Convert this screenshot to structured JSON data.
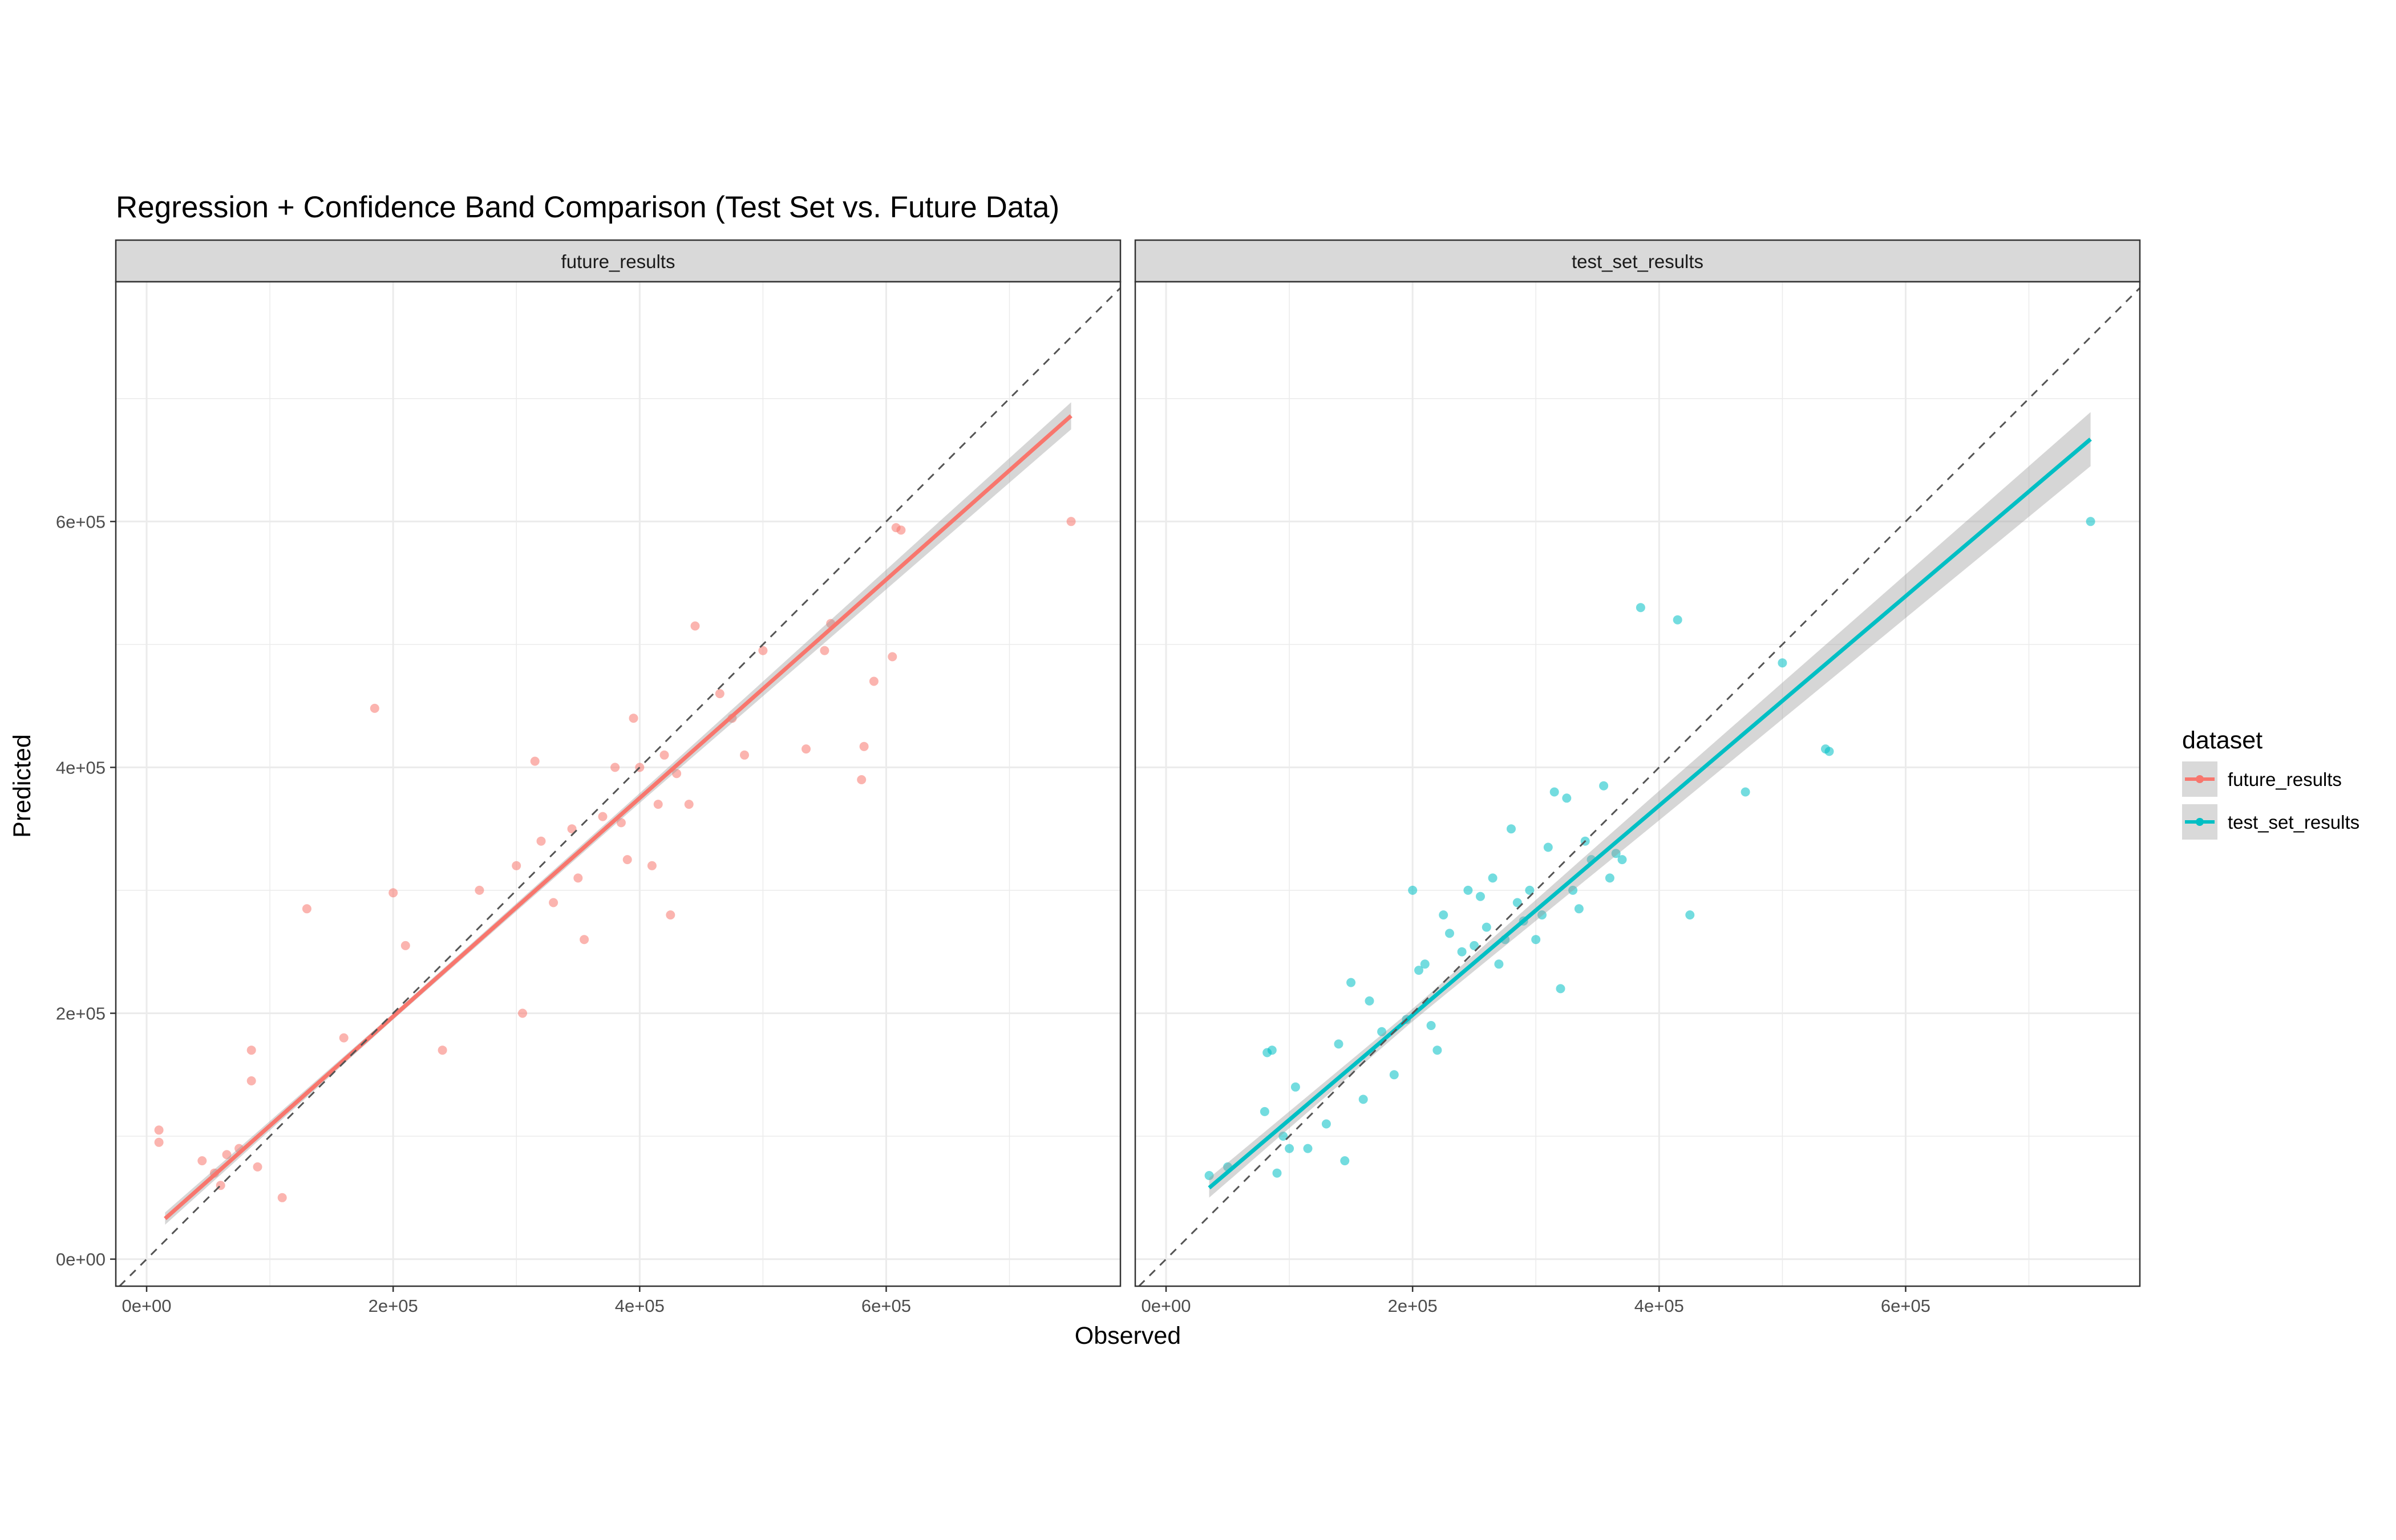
{
  "chart_data": {
    "type": "scatter",
    "title": "Regression + Confidence Band Comparison (Test Set vs. Future Data)",
    "xlabel": "Observed",
    "ylabel": "Predicted",
    "xlim": [
      -25000,
      790000
    ],
    "ylim": [
      -22000,
      795000
    ],
    "x_ticks": [
      0,
      200000,
      400000,
      600000
    ],
    "x_tick_labels": [
      "0e+00",
      "2e+05",
      "4e+05",
      "6e+05"
    ],
    "y_ticks": [
      0,
      200000,
      400000,
      600000
    ],
    "y_tick_labels": [
      "0e+00",
      "2e+05",
      "4e+05",
      "6e+05"
    ],
    "grid": true,
    "reference_line": "y = x (dashed)",
    "legend": {
      "title": "dataset",
      "position": "right",
      "entries": [
        "future_results",
        "test_set_results"
      ]
    },
    "colors": {
      "future_results": "#F8766D",
      "test_set_results": "#00BFC4",
      "band": "#999999",
      "strip": "#D9D9D9"
    },
    "series": [
      {
        "name": "future_results",
        "panel": "future_results",
        "fit": {
          "x": [
            15000,
            750000
          ],
          "y": [
            33000,
            686000
          ]
        },
        "band_halfwidth": {
          "at_x": [
            15000,
            200000,
            400000,
            750000
          ],
          "values": [
            5000,
            2500,
            4000,
            11000
          ]
        },
        "points": [
          [
            10000,
            105000
          ],
          [
            10000,
            95000
          ],
          [
            45000,
            80000
          ],
          [
            55000,
            70000
          ],
          [
            60000,
            60000
          ],
          [
            65000,
            85000
          ],
          [
            75000,
            90000
          ],
          [
            85000,
            145000
          ],
          [
            85000,
            170000
          ],
          [
            90000,
            75000
          ],
          [
            110000,
            50000
          ],
          [
            130000,
            285000
          ],
          [
            160000,
            180000
          ],
          [
            185000,
            448000
          ],
          [
            200000,
            298000
          ],
          [
            210000,
            255000
          ],
          [
            240000,
            170000
          ],
          [
            270000,
            300000
          ],
          [
            300000,
            320000
          ],
          [
            305000,
            200000
          ],
          [
            315000,
            405000
          ],
          [
            320000,
            340000
          ],
          [
            330000,
            290000
          ],
          [
            345000,
            350000
          ],
          [
            350000,
            310000
          ],
          [
            355000,
            260000
          ],
          [
            370000,
            360000
          ],
          [
            380000,
            400000
          ],
          [
            385000,
            355000
          ],
          [
            390000,
            325000
          ],
          [
            395000,
            440000
          ],
          [
            400000,
            400000
          ],
          [
            410000,
            320000
          ],
          [
            415000,
            370000
          ],
          [
            420000,
            410000
          ],
          [
            425000,
            280000
          ],
          [
            430000,
            395000
          ],
          [
            440000,
            370000
          ],
          [
            445000,
            515000
          ],
          [
            465000,
            460000
          ],
          [
            475000,
            440000
          ],
          [
            485000,
            410000
          ],
          [
            500000,
            495000
          ],
          [
            535000,
            415000
          ],
          [
            550000,
            495000
          ],
          [
            555000,
            517000
          ],
          [
            580000,
            390000
          ],
          [
            582000,
            417000
          ],
          [
            590000,
            470000
          ],
          [
            605000,
            490000
          ],
          [
            608000,
            595000
          ],
          [
            612000,
            593000
          ],
          [
            750000,
            600000
          ]
        ]
      },
      {
        "name": "test_set_results",
        "panel": "test_set_results",
        "fit": {
          "x": [
            35000,
            750000
          ],
          "y": [
            58000,
            667000
          ]
        },
        "band_halfwidth": {
          "at_x": [
            35000,
            200000,
            400000,
            750000
          ],
          "values": [
            8000,
            5000,
            12000,
            22000
          ]
        },
        "points": [
          [
            35000,
            68000
          ],
          [
            50000,
            75000
          ],
          [
            80000,
            120000
          ],
          [
            82000,
            168000
          ],
          [
            86000,
            170000
          ],
          [
            90000,
            70000
          ],
          [
            95000,
            100000
          ],
          [
            100000,
            90000
          ],
          [
            105000,
            140000
          ],
          [
            115000,
            90000
          ],
          [
            130000,
            110000
          ],
          [
            140000,
            175000
          ],
          [
            145000,
            80000
          ],
          [
            150000,
            225000
          ],
          [
            160000,
            130000
          ],
          [
            165000,
            210000
          ],
          [
            175000,
            185000
          ],
          [
            185000,
            150000
          ],
          [
            195000,
            195000
          ],
          [
            200000,
            300000
          ],
          [
            205000,
            235000
          ],
          [
            210000,
            240000
          ],
          [
            215000,
            190000
          ],
          [
            220000,
            170000
          ],
          [
            225000,
            280000
          ],
          [
            230000,
            265000
          ],
          [
            240000,
            250000
          ],
          [
            245000,
            300000
          ],
          [
            250000,
            255000
          ],
          [
            255000,
            295000
          ],
          [
            260000,
            270000
          ],
          [
            265000,
            310000
          ],
          [
            270000,
            240000
          ],
          [
            275000,
            260000
          ],
          [
            280000,
            350000
          ],
          [
            285000,
            290000
          ],
          [
            290000,
            275000
          ],
          [
            295000,
            300000
          ],
          [
            300000,
            260000
          ],
          [
            305000,
            280000
          ],
          [
            310000,
            335000
          ],
          [
            315000,
            380000
          ],
          [
            320000,
            220000
          ],
          [
            325000,
            375000
          ],
          [
            330000,
            300000
          ],
          [
            335000,
            285000
          ],
          [
            340000,
            340000
          ],
          [
            345000,
            325000
          ],
          [
            355000,
            385000
          ],
          [
            360000,
            310000
          ],
          [
            365000,
            330000
          ],
          [
            370000,
            325000
          ],
          [
            385000,
            530000
          ],
          [
            415000,
            520000
          ],
          [
            425000,
            280000
          ],
          [
            470000,
            380000
          ],
          [
            500000,
            485000
          ],
          [
            535000,
            415000
          ],
          [
            538000,
            413000
          ],
          [
            750000,
            600000
          ]
        ]
      }
    ]
  }
}
